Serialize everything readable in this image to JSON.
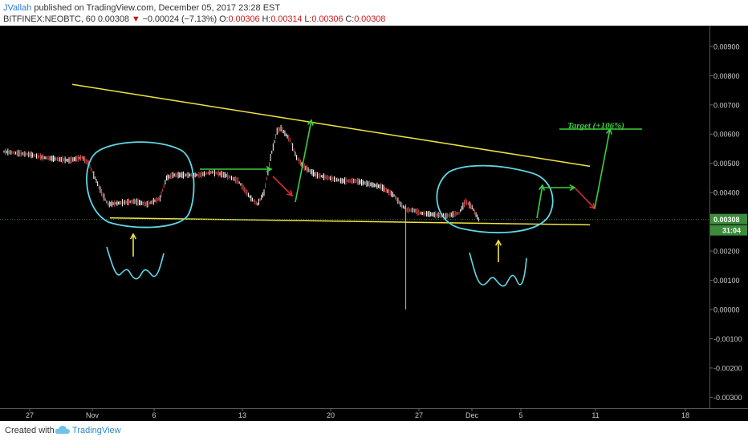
{
  "header": {
    "author": "JVallah",
    "published_text": " published on TradingView.com, December 05, 2017 23:28 EST",
    "symbol": "BITFINEX:NEOBTC, 60 ",
    "last": "0.00308",
    "down_glyph": "▼",
    "change": " −0.00024 (−7.13%)",
    "o_label": " O:",
    "o_value": "0.00306",
    "h_label": " H:",
    "h_value": "0.00314",
    "l_label": " L:",
    "l_value": "0.00306",
    "c_label": " C:",
    "c_value": "0.00308"
  },
  "footer": {
    "created_with": "Created with",
    "brand": "TradingView",
    "logo_icon": "tradingview-cloud-icon"
  },
  "colors": {
    "background": "#000000",
    "candle_up": "#ffffff",
    "candle_down": "#e04a4a",
    "trendline": "#f0e442",
    "circle": "#5fd8e6",
    "arrow_up": "#3ecf3e",
    "arrow_down": "#d92b2b",
    "price_tag": "#3b8c3b",
    "target_text": "#3ecf3e"
  },
  "chart_data": {
    "type": "line",
    "symbol": "BITFINEX:NEOBTC",
    "interval": "60",
    "x_tick_labels": [
      "27",
      "Nov",
      "6",
      "13",
      "20",
      "27",
      "Dec",
      "5",
      "11",
      "18"
    ],
    "y_tick_labels": [
      "0.00900",
      "0.00800",
      "0.00700",
      "0.00600",
      "0.00500",
      "0.00400",
      "0.00308",
      "0.00200",
      "0.00100",
      "0.00000",
      "-0.00100",
      "-0.00200",
      "-0.00300"
    ],
    "y_ticks": [
      0.009,
      0.008,
      0.007,
      0.006,
      0.005,
      0.004,
      0.002,
      0.001,
      0.0,
      -0.001,
      -0.002,
      -0.003
    ],
    "ylim": [
      -0.0031,
      0.0096
    ],
    "last_price": 0.00308,
    "last_price_label": "0.00308",
    "countdown_label": "31:04",
    "price_path": [
      [
        0,
        0.0054
      ],
      [
        2,
        0.0053
      ],
      [
        3,
        0.0052
      ],
      [
        4,
        0.00515
      ],
      [
        5,
        0.0051
      ],
      [
        6,
        0.0052
      ],
      [
        6.5,
        0.005
      ],
      [
        7,
        0.0045
      ],
      [
        7.5,
        0.004
      ],
      [
        8,
        0.0036
      ],
      [
        9,
        0.00365
      ],
      [
        10,
        0.0037
      ],
      [
        11,
        0.0036
      ],
      [
        12,
        0.0038
      ],
      [
        12.5,
        0.0045
      ],
      [
        13,
        0.0046
      ],
      [
        14,
        0.0046
      ],
      [
        15,
        0.0046
      ],
      [
        16,
        0.0047
      ],
      [
        17,
        0.0046
      ],
      [
        18,
        0.0044
      ],
      [
        19,
        0.0038
      ],
      [
        19.5,
        0.0036
      ],
      [
        20,
        0.004
      ],
      [
        20.5,
        0.0052
      ],
      [
        21,
        0.0061
      ],
      [
        21.3,
        0.0062
      ],
      [
        22,
        0.0058
      ],
      [
        22.5,
        0.0052
      ],
      [
        23,
        0.0049
      ],
      [
        24,
        0.0046
      ],
      [
        25,
        0.0045
      ],
      [
        26,
        0.0044
      ],
      [
        27,
        0.0044
      ],
      [
        28,
        0.0043
      ],
      [
        29,
        0.0042
      ],
      [
        30,
        0.0039
      ],
      [
        30.5,
        0.0036
      ],
      [
        31,
        0.0034
      ],
      [
        31.5,
        0.0034
      ],
      [
        32,
        0.0033
      ],
      [
        33,
        0.00325
      ],
      [
        34,
        0.0032
      ],
      [
        35,
        0.0033
      ],
      [
        35.5,
        0.0037
      ],
      [
        36,
        0.0035
      ],
      [
        36.5,
        0.00308
      ]
    ],
    "wick": {
      "x": 30.9,
      "low": 0.0,
      "high": 0.0036
    },
    "annotations": [
      {
        "kind": "trendline",
        "from": [
          5,
          0.0077
        ],
        "to": [
          40,
          0.0049
        ]
      },
      {
        "kind": "support_line",
        "from": [
          7.2,
          0.00308
        ],
        "to": [
          40,
          0.00295
        ]
      },
      {
        "kind": "dotted_price_line",
        "y": 0.00308
      },
      {
        "kind": "text",
        "label": "Target (+106%)",
        "at": [
          40.8,
          0.0061
        ]
      }
    ]
  }
}
